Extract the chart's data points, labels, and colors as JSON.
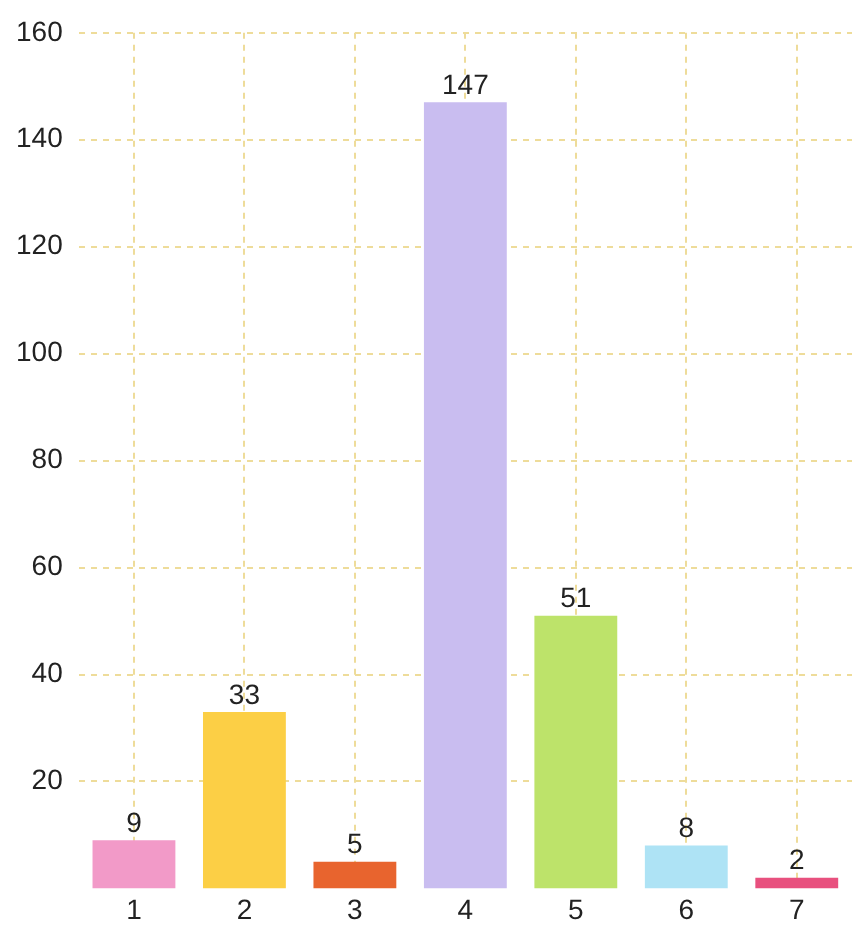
{
  "chart_data": {
    "type": "bar",
    "categories": [
      "1",
      "2",
      "3",
      "4",
      "5",
      "6",
      "7"
    ],
    "values": [
      9,
      33,
      5,
      147,
      51,
      8,
      2
    ],
    "colors": [
      "#f29ac8",
      "#fccf45",
      "#e8642e",
      "#c9bdf0",
      "#bde36a",
      "#aee3f5",
      "#e8507e"
    ],
    "ylim": [
      0,
      160
    ],
    "yticks": [
      20,
      40,
      60,
      80,
      100,
      120,
      140,
      160
    ],
    "grid": true,
    "data_labels": true
  }
}
